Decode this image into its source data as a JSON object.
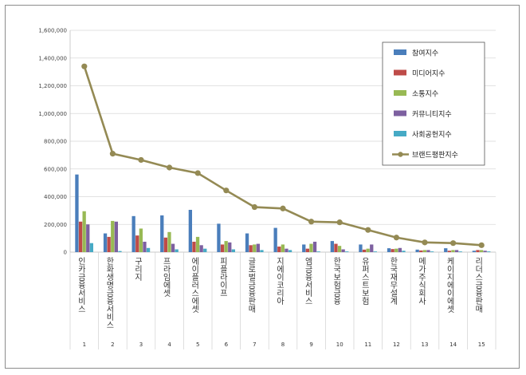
{
  "chart_data": {
    "type": "bar",
    "title": "",
    "xlabel": "",
    "ylabel": "",
    "ylim": [
      0,
      1600000
    ],
    "yticks": [
      "0",
      "200,000",
      "400,000",
      "600,000",
      "800,000",
      "1,000,000",
      "1,200,000",
      "1,400,000",
      "1,600,000"
    ],
    "grid": "horizontal",
    "legend_position": "top-right",
    "categories": [
      "인카금융서비스",
      "한화생명금융서비스",
      "구리지",
      "프라임에셋",
      "에이플러스에셋",
      "피플라이프",
      "글로벌금융판매",
      "지에이코리아",
      "엠금융서비스",
      "한국보험금융",
      "유퍼스트보험",
      "한국재무설계",
      "메가주식회사",
      "케이지에이에셋",
      "리더스금융판매"
    ],
    "indices": [
      "1",
      "2",
      "3",
      "4",
      "5",
      "6",
      "7",
      "8",
      "9",
      "10",
      "11",
      "12",
      "13",
      "14",
      "15"
    ],
    "series": [
      {
        "name": "참여지수",
        "color": "#4a7ebb",
        "values": [
          560000,
          135000,
          260000,
          265000,
          305000,
          205000,
          135000,
          175000,
          55000,
          80000,
          55000,
          28000,
          18000,
          28000,
          10000
        ]
      },
      {
        "name": "미디어지수",
        "color": "#be4b48",
        "values": [
          220000,
          110000,
          120000,
          105000,
          75000,
          55000,
          50000,
          40000,
          25000,
          60000,
          18000,
          22000,
          12000,
          10000,
          15000
        ]
      },
      {
        "name": "소통지수",
        "color": "#98b954",
        "values": [
          295000,
          225000,
          170000,
          145000,
          110000,
          80000,
          55000,
          55000,
          60000,
          45000,
          25000,
          25000,
          15000,
          15000,
          15000
        ]
      },
      {
        "name": "커뮤니티지수",
        "color": "#7d60a0",
        "values": [
          200000,
          220000,
          75000,
          60000,
          50000,
          70000,
          60000,
          25000,
          75000,
          20000,
          55000,
          30000,
          15000,
          15000,
          10000
        ]
      },
      {
        "name": "사회공헌지수",
        "color": "#46aac5",
        "values": [
          65000,
          8000,
          30000,
          20000,
          25000,
          20000,
          15000,
          15000,
          5000,
          5000,
          5000,
          10000,
          5000,
          5000,
          5000
        ]
      }
    ],
    "line": {
      "name": "브랜드평판지수",
      "color": "#948a54",
      "values": [
        1340000,
        710000,
        665000,
        610000,
        570000,
        445000,
        325000,
        315000,
        220000,
        215000,
        160000,
        105000,
        70000,
        65000,
        50000
      ]
    }
  }
}
